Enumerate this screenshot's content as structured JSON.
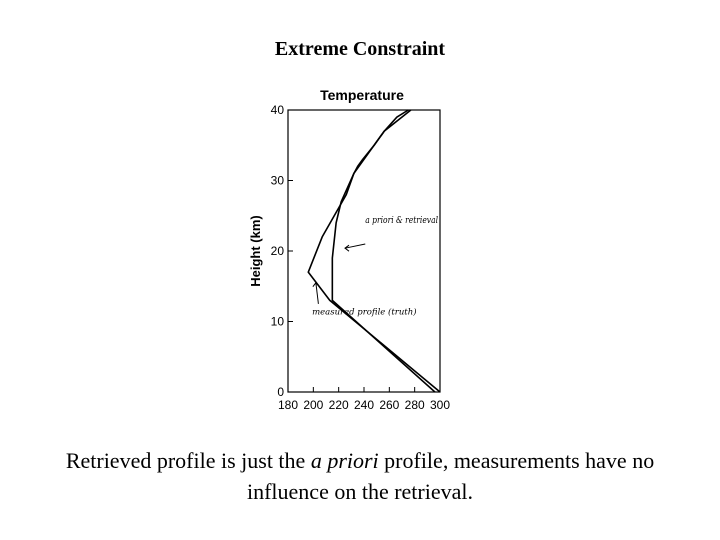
{
  "slide": {
    "title": "Extreme Constraint",
    "caption": {
      "before": "Retrieved profile is just the ",
      "emphasis": "a priori",
      "after": " profile, measurements have no influence on the retrieval."
    }
  },
  "chart_data": {
    "type": "line",
    "title": "Temperature",
    "xlabel": "",
    "ylabel": "Height (km)",
    "xlim": [
      180,
      300
    ],
    "ylim": [
      0,
      40
    ],
    "xticks": [
      180,
      200,
      220,
      240,
      260,
      280,
      300
    ],
    "yticks": [
      0,
      10,
      20,
      30,
      40
    ],
    "grid": false,
    "series": [
      {
        "x": [
          300,
          213,
          196,
          207,
          226,
          232,
          235,
          239,
          248,
          256,
          266,
          275
        ],
        "y": [
          0,
          13,
          17,
          22,
          28,
          31,
          32,
          33,
          35,
          37,
          39,
          40
        ]
      },
      {
        "x": [
          296,
          215,
          215,
          218,
          222,
          232,
          256,
          277
        ],
        "y": [
          0,
          13,
          19,
          24,
          27,
          31,
          37,
          40
        ]
      }
    ],
    "annotations": [
      {
        "text": "a priori & retrieval"
      },
      {
        "text": "measured profile (truth)"
      }
    ]
  }
}
